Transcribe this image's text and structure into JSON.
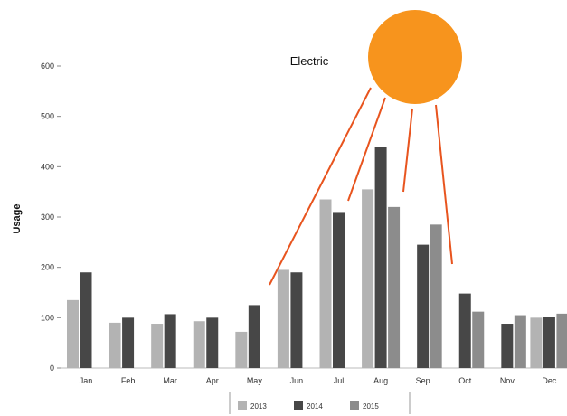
{
  "chart_data": {
    "type": "bar",
    "title": "Electric",
    "ylabel": "Usage",
    "xlabel": "",
    "categories": [
      "Jan",
      "Feb",
      "Mar",
      "Apr",
      "May",
      "Jun",
      "Jul",
      "Aug",
      "Sep",
      "Oct",
      "Nov",
      "Dec"
    ],
    "yticks": [
      "0",
      "100",
      "200",
      "300",
      "400",
      "500",
      "600"
    ],
    "ylim": [
      0,
      600
    ],
    "series": [
      {
        "name": "2013",
        "color": "#b3b3b3",
        "values": [
          135,
          90,
          88,
          93,
          72,
          195,
          335,
          355,
          null,
          null,
          null,
          100
        ]
      },
      {
        "name": "2014",
        "color": "#474747",
        "values": [
          190,
          100,
          107,
          100,
          125,
          190,
          310,
          440,
          245,
          148,
          88,
          102
        ]
      },
      {
        "name": "2015",
        "color": "#8c8c8c",
        "values": [
          null,
          null,
          null,
          null,
          null,
          null,
          null,
          320,
          285,
          112,
          105,
          108
        ]
      }
    ],
    "grid": false,
    "legend_position": "bottom",
    "annotation": {
      "shape": "sun",
      "color": "#f7941d",
      "ray_color": "#e8541e"
    }
  }
}
